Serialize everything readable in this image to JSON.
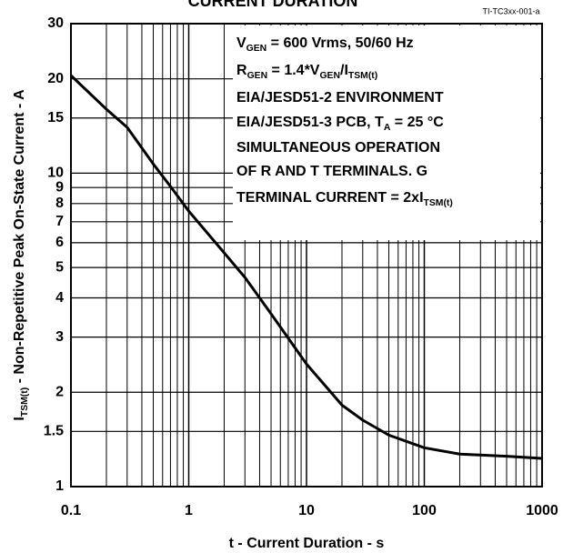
{
  "chart_data": {
    "type": "line",
    "title": "CURRENT DURATION",
    "figure_id": "TI-TC3xx-001-a",
    "x_label": "t - Current Duration - s",
    "y_label": [
      "I",
      "TSM(t)",
      " - Non-Repetitive Peak On-State Current - A"
    ],
    "annotation": [
      [
        "V",
        "GEN",
        " = 600 Vrms, 50/60 Hz"
      ],
      [
        "R",
        "GEN",
        " = 1.4*V",
        "GEN",
        "/I",
        "TSM(t)"
      ],
      [
        "EIA/JESD51-2 ENVIRONMENT"
      ],
      [
        "EIA/JESD51-3 PCB, T",
        "A",
        " = 25 °C"
      ],
      [
        "SIMULTANEOUS OPERATION"
      ],
      [
        "OF R AND T TERMINALS. G"
      ],
      [
        "TERMINAL CURRENT = 2xI",
        "TSM(t)"
      ]
    ],
    "log_x": true,
    "log_y": true,
    "xlim": [
      0.1,
      1000
    ],
    "ylim": [
      1,
      30
    ],
    "xticks": [
      0.1,
      1,
      10,
      100,
      1000
    ],
    "xgrid_minor": [
      0.2,
      0.3,
      0.4,
      0.5,
      0.6,
      0.7,
      0.8,
      0.9,
      2,
      3,
      4,
      5,
      6,
      7,
      8,
      9,
      20,
      30,
      40,
      50,
      60,
      70,
      80,
      90,
      200,
      300,
      400,
      500,
      600,
      700,
      800,
      900
    ],
    "yticks": [
      1,
      1.5,
      2,
      3,
      4,
      5,
      6,
      7,
      8,
      9,
      10,
      15,
      20,
      30
    ],
    "grid": true,
    "series": [
      {
        "color": "#000000",
        "x": [
          0.1,
          0.2,
          0.3,
          0.5,
          0.7,
          1,
          2,
          3,
          5,
          10,
          20,
          30,
          50,
          100,
          200,
          500,
          1000
        ],
        "values": [
          20.5,
          16,
          14,
          10.7,
          9.07,
          7.57,
          5.57,
          4.65,
          3.56,
          2.46,
          1.82,
          1.63,
          1.46,
          1.33,
          1.27,
          1.25,
          1.23
        ]
      }
    ]
  }
}
